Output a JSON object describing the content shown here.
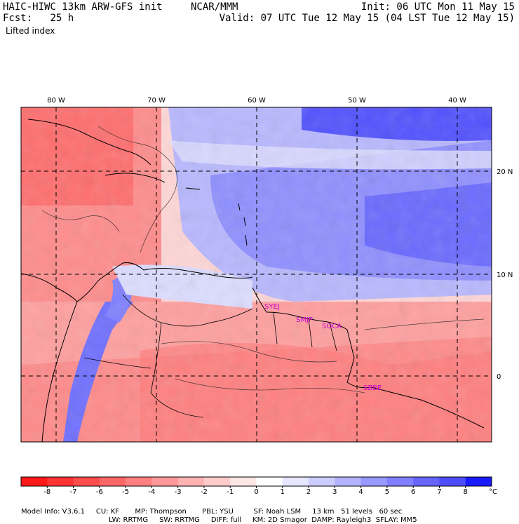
{
  "header": {
    "model_title": "HAIC-HIWC 13km ARW-GFS init",
    "org": "NCAR/MMM",
    "init": "Init: 06 UTC Mon 11 May 15",
    "fcst_label": "Fcst:",
    "fcst_value": "25 h",
    "valid": "Valid: 07 UTC Tue 12 May 15 (04 LST Tue 12 May 15)",
    "field": "Lifted index"
  },
  "map": {
    "lon_labels": [
      "80 W",
      "70 W",
      "60 W",
      "50 W",
      "40 W"
    ],
    "lat_labels": [
      "20 N",
      "10 N",
      "0"
    ],
    "stations": [
      "SYEJ",
      "SMJP",
      "SOCA",
      "SBBE"
    ],
    "station_color": "#cc00cc"
  },
  "colorbar": {
    "ticks": [
      "-8",
      "-7",
      "-6",
      "-5",
      "-4",
      "-3",
      "-2",
      "-1",
      "0",
      "1",
      "2",
      "3",
      "4",
      "5",
      "6",
      "7",
      "8"
    ],
    "unit": "°C",
    "colors": [
      "#ff1a1a",
      "#ff3333",
      "#ff4d4d",
      "#ff6666",
      "#ff8080",
      "#ff9999",
      "#ffb3b3",
      "#ffcccc",
      "#ffe6e6",
      "#ffffff",
      "#e6e6ff",
      "#ccccff",
      "#b3b3ff",
      "#9999ff",
      "#8080ff",
      "#6666ff",
      "#4d4dff",
      "#1a1aff"
    ]
  },
  "footer": {
    "line1": [
      "Model Info: V3.6.1",
      "CU: KF",
      "MP: Thompson",
      "PBL: YSU",
      "SF: Noah LSM",
      "13 km",
      "51 levels",
      "60 sec"
    ],
    "line2": [
      "LW: RRTMG",
      "SW: RRTMG",
      "DIFF: full",
      "KM: 2D Smagor",
      "DAMP: Rayleigh3",
      "SFLAY: MM5"
    ]
  }
}
